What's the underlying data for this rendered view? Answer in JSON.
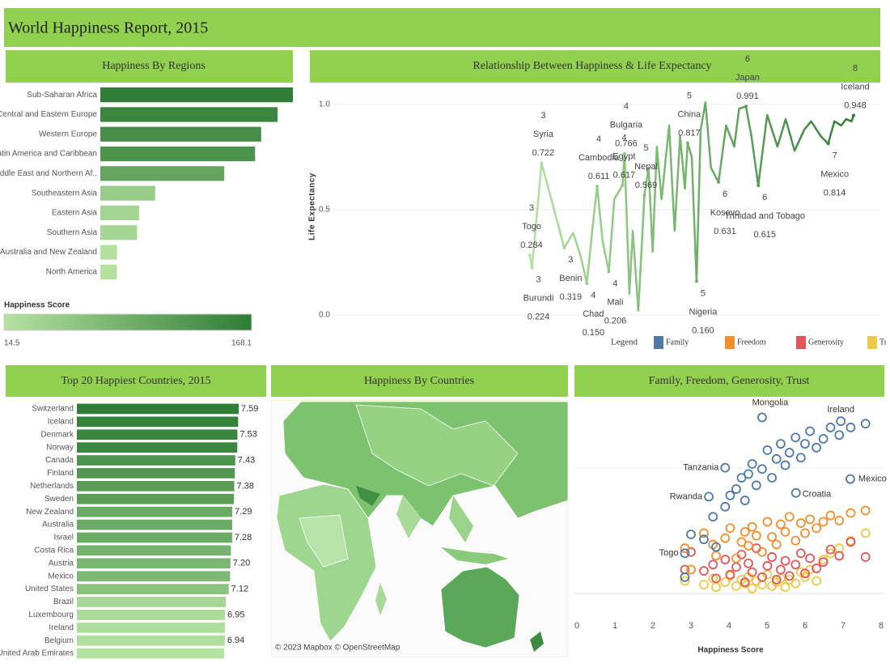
{
  "title": "World Happiness Report, 2015",
  "chart_data": [
    {
      "type": "hbar",
      "title": "Happiness By Regions",
      "categories": [
        "Sub-Saharan Africa",
        "Central and Eastern Europe",
        "Western Europe",
        "Latin America and Caribbean",
        "Middle East and Northern Af..",
        "Southeastern Asia",
        "Eastern Asia",
        "Southern Asia",
        "Australia and New Zealand",
        "North America"
      ],
      "values": [
        168.1,
        154.7,
        140.4,
        135.1,
        108.2,
        47.9,
        33.8,
        32.1,
        14.6,
        14.5
      ],
      "color_legend": {
        "title": "Happiness Score",
        "min": 14.5,
        "max": 168.1,
        "colors": [
          "#b4e3a0",
          "#2f7d36"
        ]
      }
    },
    {
      "type": "line",
      "title": "Relationship Between Happiness & Life Expectancy",
      "y_label": "Life Expectancy",
      "ylim": [
        -0.05,
        1.05
      ],
      "yticks": [
        {
          "value": 0,
          "label": "0.0"
        },
        {
          "value": 0.5,
          "label": "0.5"
        },
        {
          "value": 1,
          "label": "1.0"
        }
      ],
      "grid": true,
      "color_range": [
        "#b4e3a0",
        "#2f7d36"
      ],
      "x": [
        2.84,
        2.87,
        3.01,
        3.34,
        3.47,
        3.58,
        3.67,
        3.78,
        3.82,
        3.9,
        3.99,
        4.07,
        4.19,
        4.22,
        4.29,
        4.34,
        4.42,
        4.51,
        4.57,
        4.63,
        4.69,
        4.76,
        4.87,
        4.95,
        5.03,
        5.1,
        5.14,
        5.2,
        5.27,
        5.33,
        5.4,
        5.48,
        5.59,
        5.7,
        5.82,
        5.89,
        5.99,
        6.07,
        6.17,
        6.3,
        6.45,
        6.57,
        6.7,
        6.84,
        6.94,
        7.08,
        7.19,
        7.28,
        7.38,
        7.45,
        7.53,
        7.56
      ],
      "values": [
        0.284,
        0.224,
        0.722,
        0.319,
        0.39,
        0.28,
        0.15,
        0.5,
        0.611,
        0.35,
        0.206,
        0.55,
        0.617,
        0.766,
        0.1,
        0.4,
        0.02,
        0.569,
        0.7,
        0.3,
        0.8,
        0.55,
        0.9,
        0.4,
        0.85,
        0.6,
        0.817,
        0.75,
        0.16,
        0.88,
        1.01,
        0.7,
        0.631,
        0.9,
        0.8,
        0.98,
        0.991,
        0.85,
        0.615,
        0.95,
        0.8,
        0.93,
        0.78,
        0.88,
        0.92,
        0.85,
        0.814,
        0.92,
        0.9,
        0.93,
        0.92,
        0.948
      ],
      "annotations": [
        {
          "rank": 3,
          "label": "Togo",
          "x": 2.84,
          "value": 0.284
        },
        {
          "rank": 3,
          "label": "Burundi",
          "x": 2.87,
          "value": 0.224
        },
        {
          "rank": 3,
          "label": "Syria",
          "x": 3.01,
          "value": 0.722
        },
        {
          "rank": 3,
          "label": "Benin",
          "x": 3.34,
          "value": 0.319
        },
        {
          "rank": 4,
          "label": "Chad",
          "x": 3.67,
          "value": 0.15,
          "value_label": "0.150"
        },
        {
          "rank": 4,
          "label": "Cambodia",
          "x": 3.82,
          "value": 0.611
        },
        {
          "rank": 4,
          "label": "Mali",
          "x": 3.99,
          "value": 0.206
        },
        {
          "rank": 4,
          "label": "Egypt",
          "x": 4.19,
          "value": 0.617
        },
        {
          "rank": 4,
          "label": "Bulgaria",
          "x": 4.22,
          "value": 0.766
        },
        {
          "rank": 5,
          "label": "Nepal",
          "x": 4.51,
          "value": 0.569
        },
        {
          "rank": 5,
          "label": "China",
          "x": 5.14,
          "value": 0.817
        },
        {
          "rank": 5,
          "label": "Nigeria",
          "x": 5.27,
          "value": 0.16,
          "value_label": "0.160"
        },
        {
          "rank": 6,
          "label": "Kosovo",
          "x": 5.59,
          "value": 0.631
        },
        {
          "rank": 6,
          "label": "Japan",
          "x": 5.99,
          "value": 0.991
        },
        {
          "rank": 6,
          "label": "Trinidad and Tobago",
          "x": 6.17,
          "value": 0.615
        },
        {
          "rank": 7,
          "label": "Mexico",
          "x": 7.19,
          "value": 0.814
        },
        {
          "rank": 8,
          "label": "Iceland",
          "x": 7.56,
          "value": 0.948
        }
      ]
    },
    {
      "type": "hbar",
      "title": "Top 20 Happiest Countries, 2015",
      "categories": [
        "Switzerland",
        "Iceland",
        "Denmark",
        "Norway",
        "Canada",
        "Finland",
        "Netherlands",
        "Sweden",
        "New Zealand",
        "Australia",
        "Israel",
        "Costa Rica",
        "Austria",
        "Mexico",
        "United States",
        "Brazil",
        "Luxembourg",
        "Ireland",
        "Belgium",
        "United Arab Emirates"
      ],
      "values": [
        7.587,
        7.561,
        7.527,
        7.522,
        7.427,
        7.406,
        7.378,
        7.364,
        7.286,
        7.284,
        7.278,
        7.226,
        7.2,
        7.187,
        7.119,
        6.983,
        6.946,
        6.94,
        6.937,
        6.901
      ],
      "value_labels": [
        "7.59",
        null,
        "7.53",
        null,
        "7.43",
        null,
        "7.38",
        null,
        "7.29",
        null,
        "7.28",
        null,
        "7.20",
        null,
        "7.12",
        null,
        "6.95",
        null,
        "6.94",
        null
      ],
      "color_range": [
        "#b4e3a0",
        "#2f7d36"
      ]
    },
    {
      "type": "map",
      "title": "Happiness By Countries",
      "attribution": "© 2023 Mapbox © OpenStreetMap"
    },
    {
      "type": "scatter",
      "title": "Family, Freedom, Generosity, Trust",
      "legend_title": "Legend",
      "x_label": "Happiness Score",
      "xlim": [
        0,
        8
      ],
      "xticks": [
        0,
        1,
        2,
        3,
        4,
        5,
        6,
        7,
        8
      ],
      "ylim": [
        0,
        1.5
      ],
      "x": [
        2.84,
        3.0,
        3.34,
        3.58,
        3.66,
        3.9,
        4.03,
        4.19,
        4.33,
        4.42,
        4.51,
        4.61,
        4.72,
        4.87,
        5.01,
        5.13,
        5.25,
        5.36,
        5.48,
        5.59,
        5.75,
        5.89,
        6.0,
        6.13,
        6.3,
        6.48,
        6.67,
        6.9,
        7.2,
        7.59
      ],
      "series": [
        {
          "name": "Family",
          "color": "#4e79a7",
          "values": [
            0.13,
            0.47,
            0.43,
            0.61,
            0.37,
            0.69,
            0.78,
            0.83,
            0.92,
            0.74,
            0.95,
            1.03,
            0.86,
            0.99,
            1.14,
            0.92,
            1.07,
            1.19,
            1.02,
            1.12,
            1.24,
            1.08,
            1.19,
            1.29,
            1.16,
            1.23,
            1.32,
            1.26,
            1.32,
            1.35
          ]
        },
        {
          "name": "Freedom",
          "color": "#f28e2b",
          "values": [
            0.36,
            0.19,
            0.48,
            0.39,
            0.3,
            0.44,
            0.52,
            0.28,
            0.41,
            0.49,
            0.38,
            0.53,
            0.46,
            0.33,
            0.57,
            0.45,
            0.39,
            0.55,
            0.49,
            0.61,
            0.42,
            0.56,
            0.48,
            0.59,
            0.52,
            0.57,
            0.62,
            0.58,
            0.64,
            0.66
          ]
        },
        {
          "name": "Generosity",
          "color": "#e15759",
          "values": [
            0.19,
            0.33,
            0.18,
            0.23,
            0.12,
            0.27,
            0.15,
            0.21,
            0.31,
            0.09,
            0.24,
            0.17,
            0.36,
            0.13,
            0.22,
            0.29,
            0.11,
            0.19,
            0.26,
            0.14,
            0.23,
            0.32,
            0.16,
            0.28,
            0.2,
            0.25,
            0.35,
            0.3,
            0.41,
            0.29
          ]
        },
        {
          "name": "Trust",
          "color": "#edc948",
          "values": [
            0.1,
            0.19,
            0.07,
            0.12,
            0.05,
            0.09,
            0.14,
            0.06,
            0.11,
            0.08,
            0.13,
            0.04,
            0.1,
            0.07,
            0.15,
            0.06,
            0.09,
            0.12,
            0.05,
            0.11,
            0.08,
            0.17,
            0.13,
            0.19,
            0.1,
            0.27,
            0.32,
            0.36,
            0.42,
            0.48
          ]
        }
      ],
      "annotations": [
        {
          "label": "Ireland",
          "x": 6.94,
          "y": 1.37
        },
        {
          "label": "Mongolia",
          "x": 4.87,
          "y": 1.4
        },
        {
          "label": "Tanzania",
          "x": 3.9,
          "y": 1.0
        },
        {
          "label": "Mexico",
          "x": 7.19,
          "y": 0.91
        },
        {
          "label": "Rwanda",
          "x": 3.47,
          "y": 0.77
        },
        {
          "label": "Croatia",
          "x": 5.76,
          "y": 0.8
        },
        {
          "label": "Togo",
          "x": 2.84,
          "y": 0.32
        }
      ]
    }
  ]
}
